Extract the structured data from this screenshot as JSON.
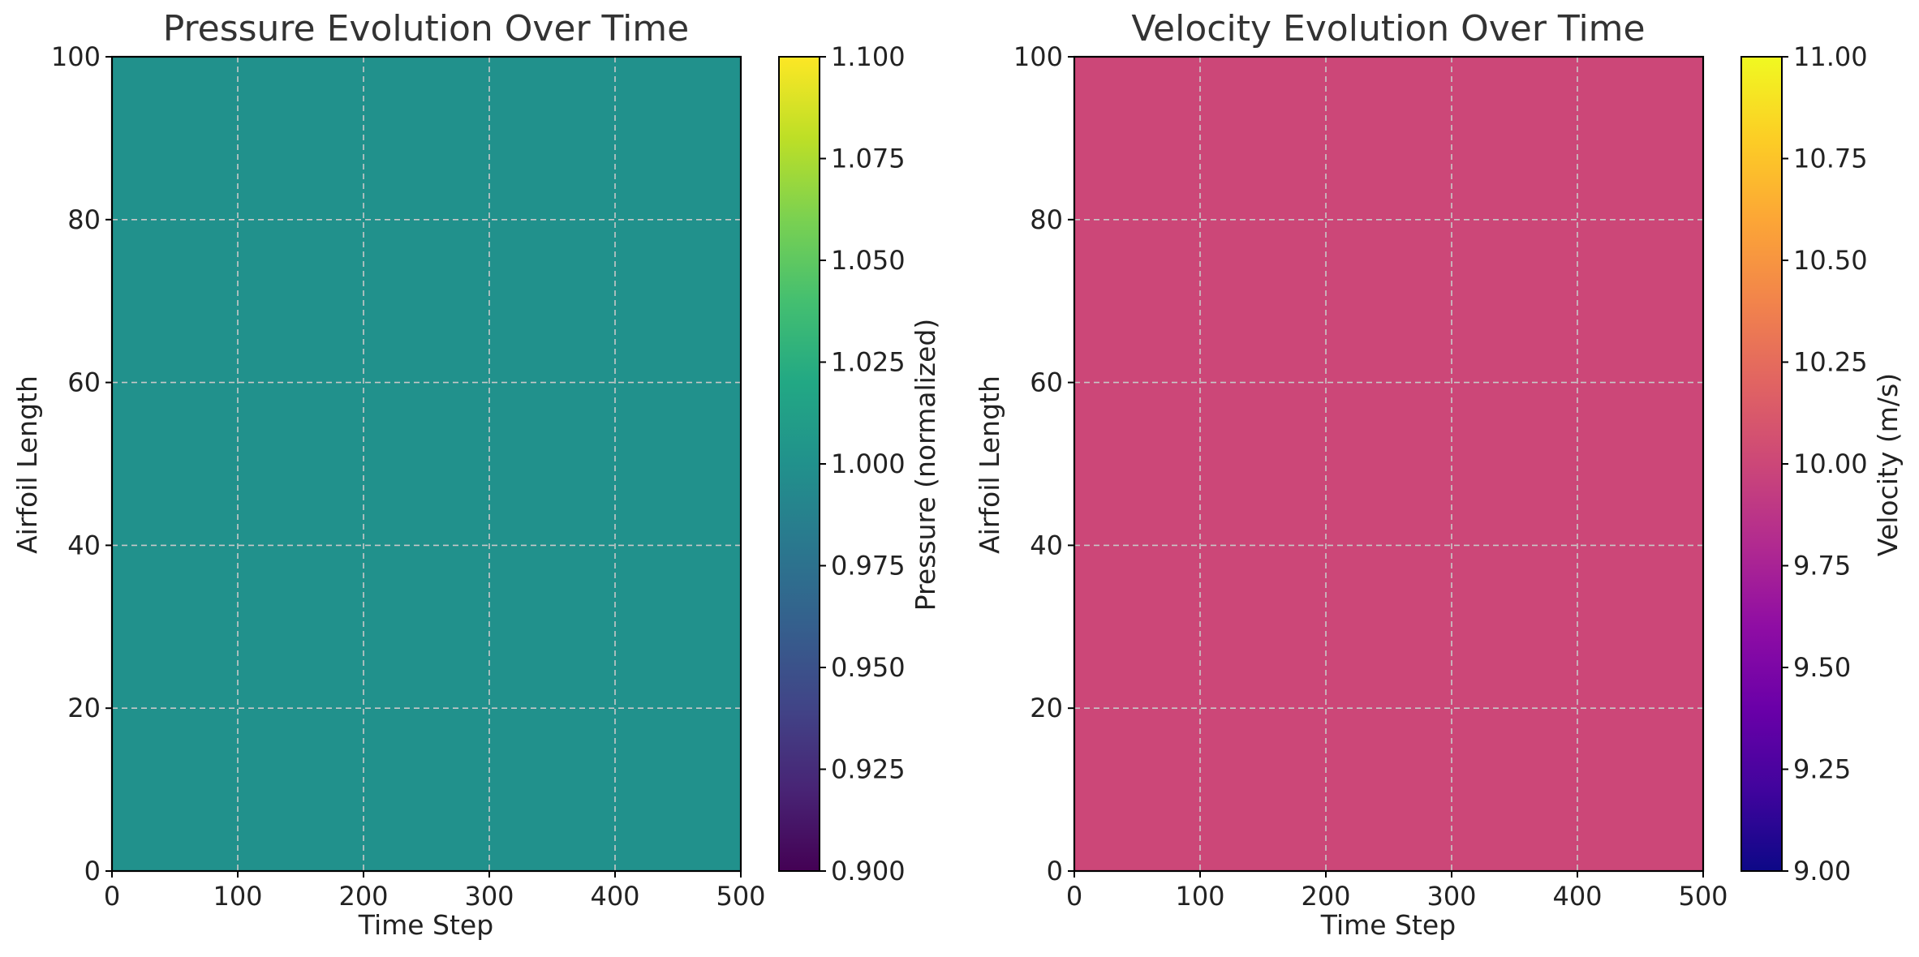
{
  "chart_data": [
    {
      "type": "heatmap",
      "title": "Pressure Evolution Over Time",
      "xlabel": "Time Step",
      "ylabel": "Airfoil Length",
      "xlim": [
        0,
        500
      ],
      "ylim": [
        0,
        100
      ],
      "xticks": [
        "0",
        "100",
        "200",
        "300",
        "400",
        "500"
      ],
      "yticks": [
        "0",
        "20",
        "40",
        "60",
        "80",
        "100"
      ],
      "grid": true,
      "field_value": 1.0,
      "field_color": "#21918c",
      "colormap": "viridis",
      "colorbar": {
        "label": "Pressure (normalized)",
        "range": [
          0.9,
          1.1
        ],
        "ticks": [
          "0.900",
          "0.925",
          "0.950",
          "0.975",
          "1.000",
          "1.025",
          "1.050",
          "1.075",
          "1.100"
        ],
        "stops": [
          "#440154",
          "#482475",
          "#414487",
          "#355f8d",
          "#2a788e",
          "#21918c",
          "#22a884",
          "#44bf70",
          "#7ad151",
          "#bddf26",
          "#fde725"
        ]
      }
    },
    {
      "type": "heatmap",
      "title": "Velocity Evolution Over Time",
      "xlabel": "Time Step",
      "ylabel": "Airfoil Length",
      "xlim": [
        0,
        500
      ],
      "ylim": [
        0,
        100
      ],
      "xticks": [
        "0",
        "100",
        "200",
        "300",
        "400",
        "500"
      ],
      "yticks": [
        "0",
        "20",
        "40",
        "60",
        "80",
        "100"
      ],
      "grid": true,
      "field_value": 10.0,
      "field_color": "#cc4778",
      "colormap": "plasma",
      "colorbar": {
        "label": "Velocity (m/s)",
        "range": [
          9.0,
          11.0
        ],
        "ticks": [
          "9.00",
          "9.25",
          "9.50",
          "9.75",
          "10.00",
          "10.25",
          "10.50",
          "10.75",
          "11.00"
        ],
        "stops": [
          "#0d0887",
          "#41049d",
          "#6a00a8",
          "#8f0da4",
          "#b12a90",
          "#cc4778",
          "#e16462",
          "#f2844b",
          "#fca636",
          "#fcce25",
          "#f0f921"
        ]
      }
    }
  ]
}
